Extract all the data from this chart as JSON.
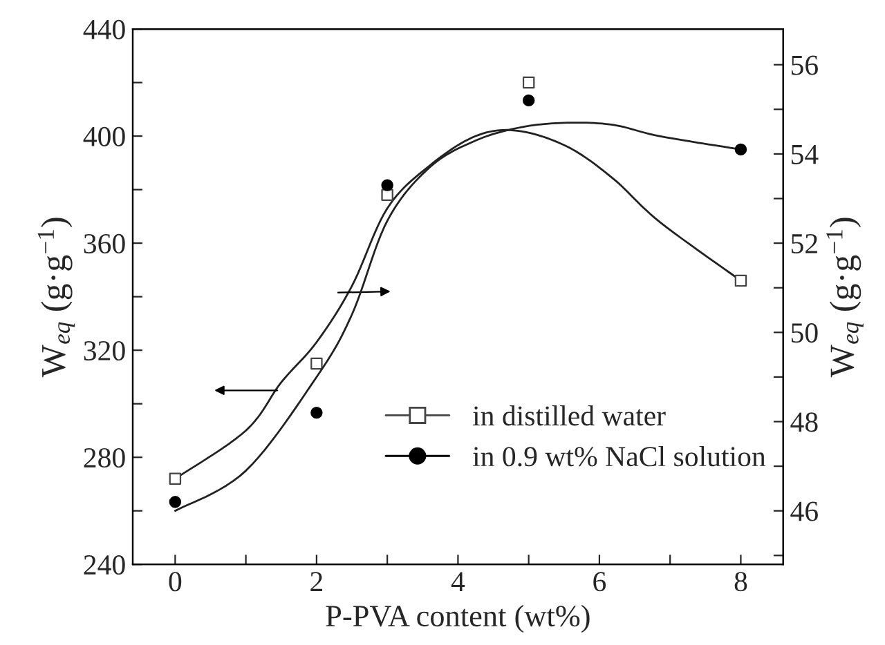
{
  "chart_data": {
    "type": "scatter",
    "xlabel": "P-PVA content (wt%)",
    "ylabel": "W$_{eq}$ (g·g$^{−1}$)",
    "y2label": "W$_{eq}$ (g·g$^{−1}$)",
    "xlim": [
      -0.6,
      8.6
    ],
    "xticks": [
      0,
      {
        "value": 1,
        "label": null
      },
      2,
      {
        "value": 3,
        "label": null
      },
      4,
      {
        "value": 5,
        "label": null
      },
      6,
      {
        "value": 7,
        "label": null
      },
      8
    ],
    "ylim": [
      240,
      440
    ],
    "yticks": [
      240,
      {
        "value": 260,
        "label": null
      },
      280,
      {
        "value": 300,
        "label": null
      },
      320,
      {
        "value": 340,
        "label": null
      },
      360,
      {
        "value": 380,
        "label": null
      },
      400,
      {
        "value": 420,
        "label": null
      },
      440
    ],
    "y2lim": [
      44.8,
      56.8
    ],
    "y2ticks": [
      {
        "value": 45,
        "label": null
      },
      46,
      {
        "value": 47,
        "label": null
      },
      48,
      {
        "value": 49,
        "label": null
      },
      50,
      {
        "value": 51,
        "label": null
      },
      52,
      {
        "value": 53,
        "label": null
      },
      54,
      {
        "value": 55,
        "label": null
      },
      56
    ],
    "legend": "bottom right",
    "grid": false,
    "series": [
      {
        "name": "in distilled water",
        "marker": "square",
        "color": "#444444",
        "x": [
          0,
          2,
          3,
          5,
          8
        ],
        "values": [
          272,
          315,
          378,
          420,
          346
        ]
      },
      {
        "name": "in 0.9 wt% NaCl solution",
        "marker": "circle",
        "axis": "y2",
        "color": "#000000",
        "x": [
          0,
          2,
          3,
          5,
          8
        ],
        "values": [
          46.2,
          48.2,
          53.3,
          55.2,
          54.1
        ]
      },
      {
        "type": "line",
        "color": "#222222",
        "x": [
          0,
          1,
          1.5,
          2,
          2.5,
          3,
          3.6,
          4.25,
          4.84,
          5.55,
          6.2,
          6.85,
          8
        ],
        "values": [
          272,
          290,
          308,
          323,
          344,
          373,
          389,
          400,
          402,
          396,
          384,
          368,
          346
        ]
      },
      {
        "type": "line",
        "color": "#222222",
        "axis": "y2",
        "x": [
          0,
          1,
          2,
          2.5,
          3,
          3.6,
          4.25,
          4.9,
          5.55,
          6.2,
          6.85,
          8
        ],
        "values": [
          46.0,
          46.9,
          49.0,
          50.4,
          52.5,
          53.7,
          54.3,
          54.6,
          54.7,
          54.65,
          54.4,
          54.1
        ]
      }
    ]
  }
}
